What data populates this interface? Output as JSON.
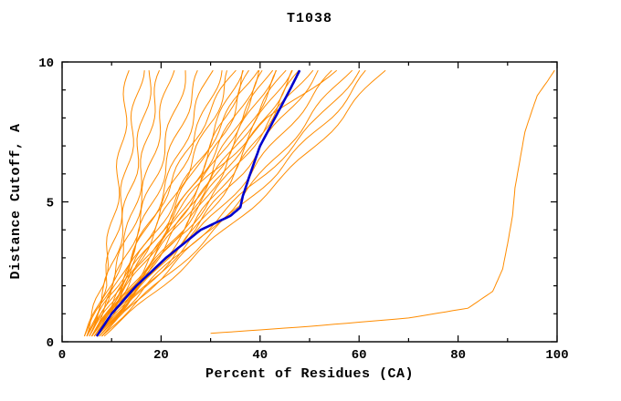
{
  "chart_data": {
    "type": "line",
    "title": "T1038",
    "xlabel": "Percent of Residues (CA)",
    "ylabel": "Distance Cutoff, A",
    "xlim": [
      0,
      100
    ],
    "ylim": [
      0,
      10
    ],
    "x_ticks": [
      0,
      20,
      40,
      60,
      80,
      100
    ],
    "y_ticks": [
      0,
      5,
      10
    ],
    "x_minor_step": 10,
    "y_minor_step": 1,
    "grid": false,
    "legend": "none",
    "colors": {
      "model": "#ff8c00",
      "highlight": "#0000cc",
      "axis": "#000000",
      "background": "#ffffff"
    },
    "y_grid": [
      0.2,
      2,
      4,
      6,
      8,
      9.7
    ],
    "model_series_x": [
      [
        5,
        8,
        10,
        11.5,
        12.5,
        13.5
      ],
      [
        4.5,
        8.5,
        11,
        13,
        14.5,
        16
      ],
      [
        5,
        9,
        12,
        14.5,
        16.5,
        18
      ],
      [
        5.5,
        10,
        13.5,
        16,
        18,
        20
      ],
      [
        4.5,
        9.5,
        14,
        17.5,
        20,
        22
      ],
      [
        5,
        10.5,
        15,
        19,
        22.5,
        25
      ],
      [
        6,
        11,
        16,
        20.5,
        24.5,
        28
      ],
      [
        5.5,
        11.5,
        17,
        22,
        26.5,
        30
      ],
      [
        6,
        12,
        18,
        23.5,
        28.5,
        32
      ],
      [
        6.5,
        12.5,
        19,
        25,
        30.5,
        34
      ],
      [
        5,
        11,
        17,
        23,
        29,
        35
      ],
      [
        6,
        13,
        20,
        26.5,
        32,
        36
      ],
      [
        6.5,
        13.5,
        21,
        27.5,
        33,
        37
      ],
      [
        7,
        14,
        22,
        28.5,
        34,
        38
      ],
      [
        5.5,
        12,
        19,
        26,
        33,
        39
      ],
      [
        6,
        13,
        21,
        28,
        35,
        40
      ],
      [
        7,
        15,
        23,
        30,
        36,
        41
      ],
      [
        6.5,
        14,
        22,
        29.5,
        36.5,
        42
      ],
      [
        7,
        15.5,
        24,
        31,
        37.5,
        43
      ],
      [
        7.5,
        16,
        25,
        32,
        38.5,
        44
      ],
      [
        6,
        14,
        23,
        31,
        39,
        45
      ],
      [
        7,
        15,
        24,
        32.5,
        40,
        46
      ],
      [
        7.5,
        16.5,
        26,
        34,
        41,
        47
      ],
      [
        8,
        17,
        27,
        35,
        42,
        48
      ],
      [
        6.5,
        15,
        25,
        34,
        42.5,
        50
      ],
      [
        7,
        16,
        26.5,
        36,
        44.5,
        52
      ],
      [
        7.5,
        17,
        28,
        38,
        47,
        55
      ],
      [
        8,
        18,
        30,
        40.5,
        50,
        58
      ],
      [
        7,
        17,
        29,
        41,
        52,
        60
      ],
      [
        8,
        19,
        31,
        43,
        54,
        62
      ],
      [
        8.5,
        20,
        33,
        45.5,
        56.5,
        65
      ],
      [
        6,
        12,
        20,
        30,
        42,
        55
      ]
    ],
    "outlier_points": [
      [
        30,
        0.3
      ],
      [
        50,
        0.55
      ],
      [
        70,
        0.85
      ],
      [
        82,
        1.2
      ],
      [
        87,
        1.8
      ],
      [
        89,
        2.6
      ],
      [
        90,
        3.5
      ],
      [
        91,
        4.5
      ],
      [
        91.5,
        5.5
      ],
      [
        92.5,
        6.5
      ],
      [
        93.5,
        7.5
      ],
      [
        95,
        8.3
      ],
      [
        96,
        8.8
      ],
      [
        98,
        9.3
      ],
      [
        99.5,
        9.7
      ]
    ],
    "highlight_points": [
      [
        7,
        0.2
      ],
      [
        10,
        1
      ],
      [
        15,
        2
      ],
      [
        21,
        3
      ],
      [
        28,
        4
      ],
      [
        34,
        4.5
      ],
      [
        36,
        4.8
      ],
      [
        36.5,
        5.2
      ],
      [
        38,
        6
      ],
      [
        40,
        7
      ],
      [
        43,
        8
      ],
      [
        46,
        9
      ],
      [
        48,
        9.7
      ]
    ]
  }
}
